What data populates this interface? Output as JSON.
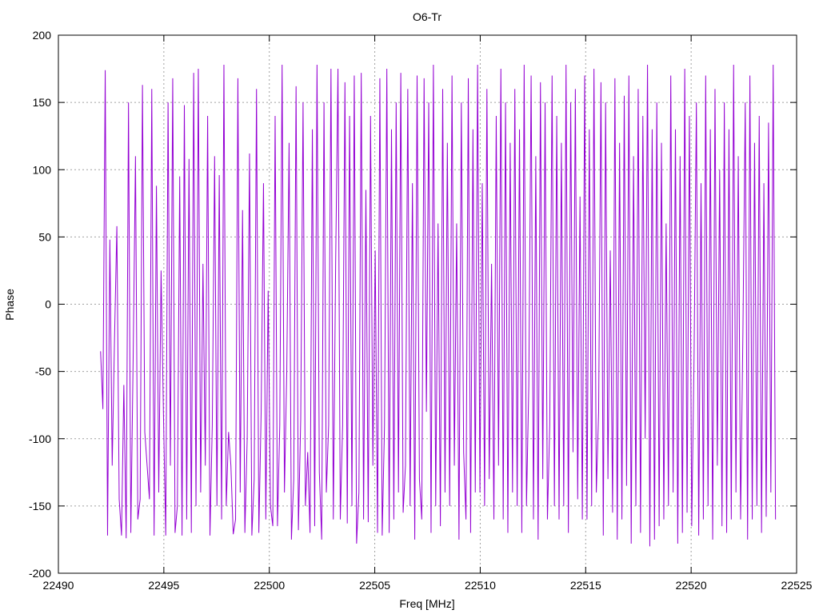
{
  "chart_data": {
    "type": "line",
    "title": "O6-Tr",
    "xlabel": "Freq [MHz]",
    "ylabel": "Phase",
    "xlim": [
      22490,
      22525
    ],
    "ylim": [
      -200,
      200
    ],
    "xticks": [
      22490,
      22495,
      22500,
      22505,
      22510,
      22515,
      22520,
      22525
    ],
    "yticks": [
      -200,
      -150,
      -100,
      -50,
      0,
      50,
      100,
      150,
      200
    ],
    "grid": true,
    "series": [
      {
        "color": "#9400d3",
        "x_start": 22492.0,
        "x_end": 22524.0,
        "values": [
          -35,
          -78,
          174,
          -172,
          48,
          -120,
          -25,
          58,
          -145,
          -172,
          -60,
          -174,
          150,
          -170,
          -40,
          110,
          -160,
          -145,
          163,
          -95,
          -120,
          -145,
          160,
          -172,
          88,
          -140,
          25,
          -80,
          -172,
          150,
          -120,
          168,
          -170,
          -150,
          95,
          -172,
          148,
          -160,
          108,
          -170,
          172,
          -150,
          175,
          -140,
          30,
          -120,
          140,
          -172,
          -90,
          110,
          -150,
          96,
          -160,
          178,
          -150,
          -95,
          -120,
          -171,
          -160,
          168,
          -140,
          70,
          -170,
          -100,
          112,
          -172,
          -130,
          160,
          -170,
          -80,
          90,
          -160,
          10,
          -150,
          -165,
          140,
          -165,
          -90,
          178,
          -140,
          -50,
          120,
          -175,
          -130,
          162,
          -168,
          -85,
          150,
          -150,
          -110,
          -170,
          130,
          -165,
          178,
          -125,
          -175,
          150,
          -140,
          -90,
          175,
          -160,
          30,
          175,
          -160,
          -90,
          165,
          -163,
          140,
          -150,
          170,
          -178,
          -140,
          172,
          -160,
          85,
          -162,
          140,
          -120,
          40,
          -170,
          168,
          -172,
          -90,
          175,
          -170,
          130,
          -160,
          150,
          -140,
          172,
          -155,
          -120,
          160,
          -150,
          90,
          -175,
          170,
          -130,
          -160,
          168,
          -80,
          150,
          -170,
          178,
          -150,
          60,
          -165,
          160,
          -140,
          120,
          -150,
          170,
          -120,
          60,
          -175,
          150,
          -110,
          -160,
          168,
          -170,
          130,
          -140,
          178,
          -140,
          90,
          -150,
          160,
          -130,
          30,
          -160,
          140,
          -120,
          175,
          -160,
          150,
          -170,
          120,
          -140,
          160,
          -150,
          130,
          -170,
          178,
          -150,
          -60,
          170,
          -160,
          110,
          -175,
          165,
          -130,
          150,
          -160,
          -90,
          170,
          -150,
          140,
          -160,
          120,
          -150,
          178,
          -170,
          150,
          -110,
          160,
          -145,
          80,
          -160,
          170,
          -160,
          130,
          -150,
          175,
          -140,
          -80,
          165,
          -172,
          150,
          -130,
          40,
          -155,
          168,
          -175,
          120,
          -160,
          155,
          -135,
          170,
          -178,
          110,
          -150,
          160,
          -170,
          140,
          -100,
          178,
          -180,
          130,
          -175,
          150,
          -165,
          120,
          -160,
          60,
          -150,
          170,
          -140,
          130,
          -178,
          110,
          -170,
          175,
          -155,
          140,
          -165,
          -40,
          150,
          -172,
          90,
          -160,
          170,
          -150,
          130,
          -175,
          160,
          -120,
          100,
          -165,
          150,
          -170,
          130,
          -160,
          178,
          -140,
          110,
          -160,
          -20,
          150,
          -175,
          170,
          -160,
          120,
          -150,
          140,
          -170,
          90,
          -158,
          135,
          -140,
          178,
          -160
        ]
      }
    ]
  }
}
